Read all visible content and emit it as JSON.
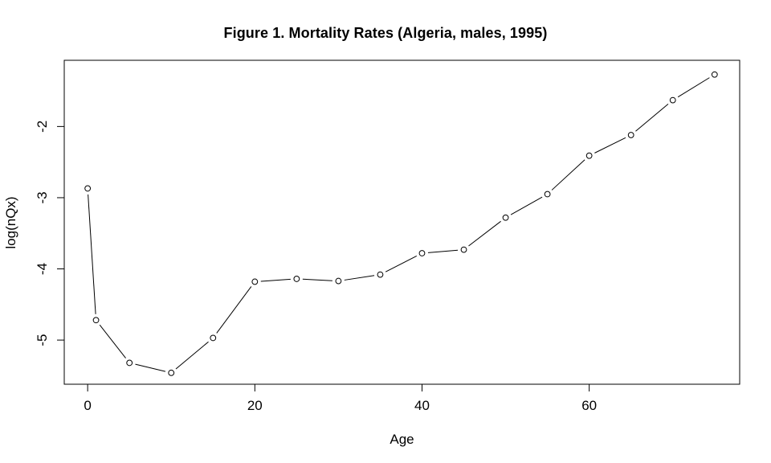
{
  "page": {
    "background": "#ffffff"
  },
  "chart_data": {
    "type": "line",
    "title": "Figure 1. Mortality Rates (Algeria, males, 1995)",
    "xlabel": "Age",
    "ylabel": "log(nQx)",
    "x": [
      0,
      1,
      5,
      10,
      15,
      20,
      25,
      30,
      35,
      40,
      45,
      50,
      55,
      60,
      65,
      70,
      75
    ],
    "y": [
      -2.87,
      -4.72,
      -5.32,
      -5.46,
      -4.97,
      -4.18,
      -4.14,
      -4.17,
      -4.08,
      -3.78,
      -3.73,
      -3.28,
      -2.95,
      -2.41,
      -2.12,
      -1.63,
      -1.27
    ],
    "xlim": [
      -2.8,
      78.0
    ],
    "ylim": [
      -5.62,
      -1.07
    ],
    "xticks": [
      0,
      20,
      40,
      60
    ],
    "yticks": [
      -5,
      -4,
      -3,
      -2
    ],
    "marker": "open-circle",
    "line_style": "solid",
    "line_color": "#000000",
    "marker_color": "#000000",
    "marker_fill": "#ffffff",
    "grid": false,
    "legend": null
  }
}
